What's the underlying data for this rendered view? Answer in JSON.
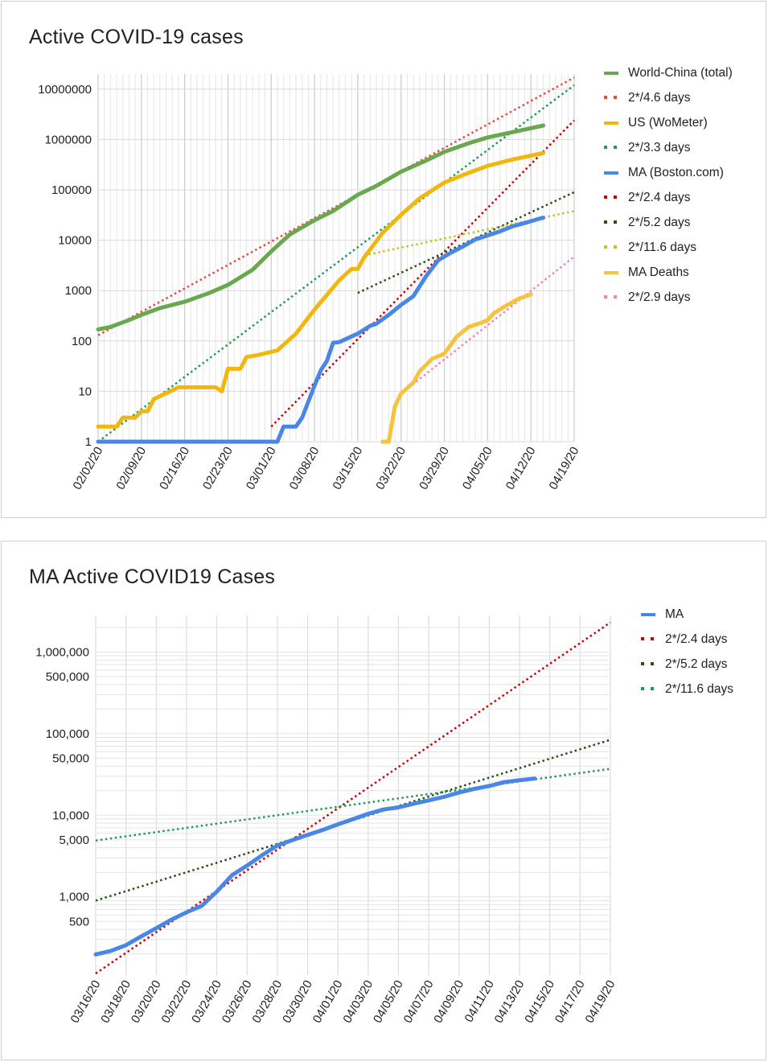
{
  "colors": {
    "world": "#6aa84f",
    "us": "#f1b70f",
    "ma": "#4a86e8",
    "ma_deaths": "#f6c341",
    "red": "#e64a3c",
    "dark_red": "#cc0000",
    "green_dot": "#1e9c55",
    "dark_green": "#274e13",
    "olive": "#c4c221",
    "pink": "#f27fba",
    "grid": "#dddddd"
  },
  "chart_data": [
    {
      "type": "line",
      "title": "Active COVID-19 cases",
      "y_scale": "log",
      "ylim": [
        1,
        20000000
      ],
      "xlim": [
        "02/02/20",
        "04/19/20"
      ],
      "x_tick_labels": [
        "02/02/20",
        "02/09/20",
        "02/16/20",
        "02/23/20",
        "03/01/20",
        "03/08/20",
        "03/15/20",
        "03/22/20",
        "03/29/20",
        "04/05/20",
        "04/12/20",
        "04/19/20"
      ],
      "y_tick_labels": [
        "1",
        "10",
        "100",
        "1000",
        "10000",
        "100000",
        "1000000",
        "10000000"
      ],
      "y_ticks": [
        1,
        10,
        100,
        1000,
        10000,
        100000,
        1000000,
        10000000
      ],
      "grid": true,
      "legend_position": "right",
      "series": [
        {
          "name": "World-China (total)",
          "color_key": "world",
          "style": "solid",
          "width": 5,
          "points": [
            [
              "02/02/20",
              170
            ],
            [
              "02/04/20",
              190
            ],
            [
              "02/07/20",
              260
            ],
            [
              "02/09/20",
              330
            ],
            [
              "02/12/20",
              450
            ],
            [
              "02/16/20",
              600
            ],
            [
              "02/20/20",
              900
            ],
            [
              "02/23/20",
              1300
            ],
            [
              "02/27/20",
              2600
            ],
            [
              "03/01/20",
              6000
            ],
            [
              "03/04/20",
              13000
            ],
            [
              "03/08/20",
              25000
            ],
            [
              "03/11/20",
              38000
            ],
            [
              "03/15/20",
              80000
            ],
            [
              "03/18/20",
              120000
            ],
            [
              "03/22/20",
              230000
            ],
            [
              "03/26/20",
              380000
            ],
            [
              "03/29/20",
              570000
            ],
            [
              "04/02/20",
              850000
            ],
            [
              "04/05/20",
              1100000
            ],
            [
              "04/09/20",
              1400000
            ],
            [
              "04/14/20",
              1900000
            ]
          ]
        },
        {
          "name": "2*/4.6 days",
          "color_key": "red",
          "style": "dotted",
          "width": 2.5,
          "points": [
            [
              "02/02/20",
              130
            ],
            [
              "04/19/20",
              17000000
            ]
          ]
        },
        {
          "name": "US (WoMeter)",
          "color_key": "us",
          "style": "solid",
          "width": 5,
          "points": [
            [
              "02/02/20",
              2
            ],
            [
              "02/05/20",
              2
            ],
            [
              "02/06/20",
              3
            ],
            [
              "02/08/20",
              3
            ],
            [
              "02/09/20",
              4
            ],
            [
              "02/10/20",
              4
            ],
            [
              "02/11/20",
              7
            ],
            [
              "02/15/20",
              12
            ],
            [
              "02/21/20",
              12
            ],
            [
              "02/22/20",
              10
            ],
            [
              "02/23/20",
              28
            ],
            [
              "02/25/20",
              28
            ],
            [
              "02/26/20",
              48
            ],
            [
              "02/28/20",
              53
            ],
            [
              "03/02/20",
              65
            ],
            [
              "03/05/20",
              140
            ],
            [
              "03/08/20",
              420
            ],
            [
              "03/12/20",
              1600
            ],
            [
              "03/14/20",
              2700
            ],
            [
              "03/15/20",
              2700
            ],
            [
              "03/16/20",
              4500
            ],
            [
              "03/19/20",
              14000
            ],
            [
              "03/22/20",
              32000
            ],
            [
              "03/25/20",
              68000
            ],
            [
              "03/29/20",
              140000
            ],
            [
              "04/02/20",
              220000
            ],
            [
              "04/05/20",
              300000
            ],
            [
              "04/09/20",
              400000
            ],
            [
              "04/12/20",
              480000
            ],
            [
              "04/14/20",
              540000
            ]
          ]
        },
        {
          "name": "2*/3.3 days",
          "color_key": "green_dot",
          "style": "dotted",
          "width": 2.5,
          "points": [
            [
              "02/02/20",
              1
            ],
            [
              "04/19/20",
              12000000
            ]
          ]
        },
        {
          "name": "MA (Boston.com)",
          "color_key": "ma",
          "style": "solid",
          "width": 5,
          "points": [
            [
              "02/02/20",
              1
            ],
            [
              "03/02/20",
              1
            ],
            [
              "03/03/20",
              2
            ],
            [
              "03/05/20",
              2
            ],
            [
              "03/06/20",
              3
            ],
            [
              "03/08/20",
              13
            ],
            [
              "03/09/20",
              26
            ],
            [
              "03/10/20",
              40
            ],
            [
              "03/11/20",
              92
            ],
            [
              "03/12/20",
              95
            ],
            [
              "03/15/20",
              140
            ],
            [
              "03/17/20",
              200
            ],
            [
              "03/18/20",
              220
            ],
            [
              "03/20/20",
              330
            ],
            [
              "03/22/20",
              520
            ],
            [
              "03/24/20",
              780
            ],
            [
              "03/26/20",
              1900
            ],
            [
              "03/28/20",
              4000
            ],
            [
              "03/30/20",
              5600
            ],
            [
              "04/01/20",
              7500
            ],
            [
              "04/03/20",
              10400
            ],
            [
              "04/05/20",
              12500
            ],
            [
              "04/07/20",
              15000
            ],
            [
              "04/09/20",
              18900
            ],
            [
              "04/11/20",
              22000
            ],
            [
              "04/13/20",
              26000
            ],
            [
              "04/14/20",
              28000
            ]
          ]
        },
        {
          "name": "2*/2.4 days",
          "color_key": "dark_red",
          "style": "dotted",
          "width": 2.5,
          "points": [
            [
              "03/01/20",
              2
            ],
            [
              "04/19/20",
              2400000
            ]
          ]
        },
        {
          "name": "2*/5.2 days",
          "color_key": "dark_green",
          "style": "dotted",
          "width": 2.5,
          "points": [
            [
              "03/15/20",
              900
            ],
            [
              "04/19/20",
              90000
            ]
          ]
        },
        {
          "name": "2*/11.6 days",
          "color_key": "olive",
          "style": "dotted",
          "width": 2.5,
          "points": [
            [
              "03/16/20",
              5000
            ],
            [
              "04/19/20",
              38000
            ]
          ]
        },
        {
          "name": "MA Deaths",
          "color_key": "ma_deaths",
          "style": "solid",
          "width": 5,
          "points": [
            [
              "03/19/20",
              1
            ],
            [
              "03/20/20",
              1
            ],
            [
              "03/21/20",
              5
            ],
            [
              "03/22/20",
              9
            ],
            [
              "03/24/20",
              15
            ],
            [
              "03/25/20",
              25
            ],
            [
              "03/27/20",
              44
            ],
            [
              "03/29/20",
              56
            ],
            [
              "03/31/20",
              122
            ],
            [
              "04/02/20",
              192
            ],
            [
              "04/04/20",
              231
            ],
            [
              "04/05/20",
              260
            ],
            [
              "04/06/20",
              356
            ],
            [
              "04/08/20",
              503
            ],
            [
              "04/10/20",
              686
            ],
            [
              "04/12/20",
              844
            ]
          ]
        },
        {
          "name": "2*/2.9 days",
          "color_key": "pink",
          "style": "dotted",
          "width": 2.5,
          "points": [
            [
              "03/22/20",
              9
            ],
            [
              "04/19/20",
              4700
            ]
          ]
        }
      ]
    },
    {
      "type": "line",
      "title": "MA Active COVID19 Cases",
      "y_scale": "log",
      "ylim": [
        110,
        2800000
      ],
      "xlim": [
        "03/16/20",
        "04/19/20"
      ],
      "x_tick_labels": [
        "03/16/20",
        "03/18/20",
        "03/20/20",
        "03/22/20",
        "03/24/20",
        "03/26/20",
        "03/28/20",
        "03/30/20",
        "04/01/20",
        "04/03/20",
        "04/05/20",
        "04/07/20",
        "04/09/20",
        "04/11/20",
        "04/13/20",
        "04/15/20",
        "04/17/20",
        "04/19/20"
      ],
      "y_tick_labels": [
        "500",
        "1,000",
        "5,000",
        "10,000",
        "50,000",
        "100,000",
        "500,000",
        "1,000,000"
      ],
      "y_ticks": [
        500,
        1000,
        5000,
        10000,
        50000,
        100000,
        500000,
        1000000
      ],
      "grid": true,
      "legend_position": "right",
      "series": [
        {
          "name": "MA",
          "color_key": "ma",
          "style": "solid",
          "width": 5,
          "points": [
            [
              "03/16/20",
              197
            ],
            [
              "03/17/20",
              218
            ],
            [
              "03/18/20",
              256
            ],
            [
              "03/19/20",
              328
            ],
            [
              "03/20/20",
              413
            ],
            [
              "03/21/20",
              525
            ],
            [
              "03/22/20",
              646
            ],
            [
              "03/23/20",
              777
            ],
            [
              "03/24/20",
              1159
            ],
            [
              "03/25/20",
              1838
            ],
            [
              "03/26/20",
              2417
            ],
            [
              "03/27/20",
              3240
            ],
            [
              "03/28/20",
              4257
            ],
            [
              "03/29/20",
              4955
            ],
            [
              "03/30/20",
              5752
            ],
            [
              "03/31/20",
              6620
            ],
            [
              "04/01/20",
              7738
            ],
            [
              "04/02/20",
              8966
            ],
            [
              "04/03/20",
              10402
            ],
            [
              "04/04/20",
              11736
            ],
            [
              "04/05/20",
              12500
            ],
            [
              "04/06/20",
              13837
            ],
            [
              "04/07/20",
              15202
            ],
            [
              "04/08/20",
              16790
            ],
            [
              "04/09/20",
              18941
            ],
            [
              "04/10/20",
              20974
            ],
            [
              "04/11/20",
              22860
            ],
            [
              "04/12/20",
              25475
            ],
            [
              "04/13/20",
              26867
            ],
            [
              "04/14/20",
              28163
            ]
          ]
        },
        {
          "name": "2*/2.4 days",
          "color_key": "dark_red",
          "style": "dotted",
          "width": 2.5,
          "points": [
            [
              "03/16/20",
              115
            ],
            [
              "04/19/20",
              2300000
            ]
          ]
        },
        {
          "name": "2*/5.2 days",
          "color_key": "dark_green",
          "style": "dotted",
          "width": 2.5,
          "points": [
            [
              "03/16/20",
              900
            ],
            [
              "04/19/20",
              84000
            ]
          ]
        },
        {
          "name": "2*/11.6 days",
          "color_key": "green_dot",
          "style": "dotted",
          "width": 2.5,
          "points": [
            [
              "03/16/20",
              4900
            ],
            [
              "04/19/20",
              37000
            ]
          ]
        }
      ]
    }
  ]
}
